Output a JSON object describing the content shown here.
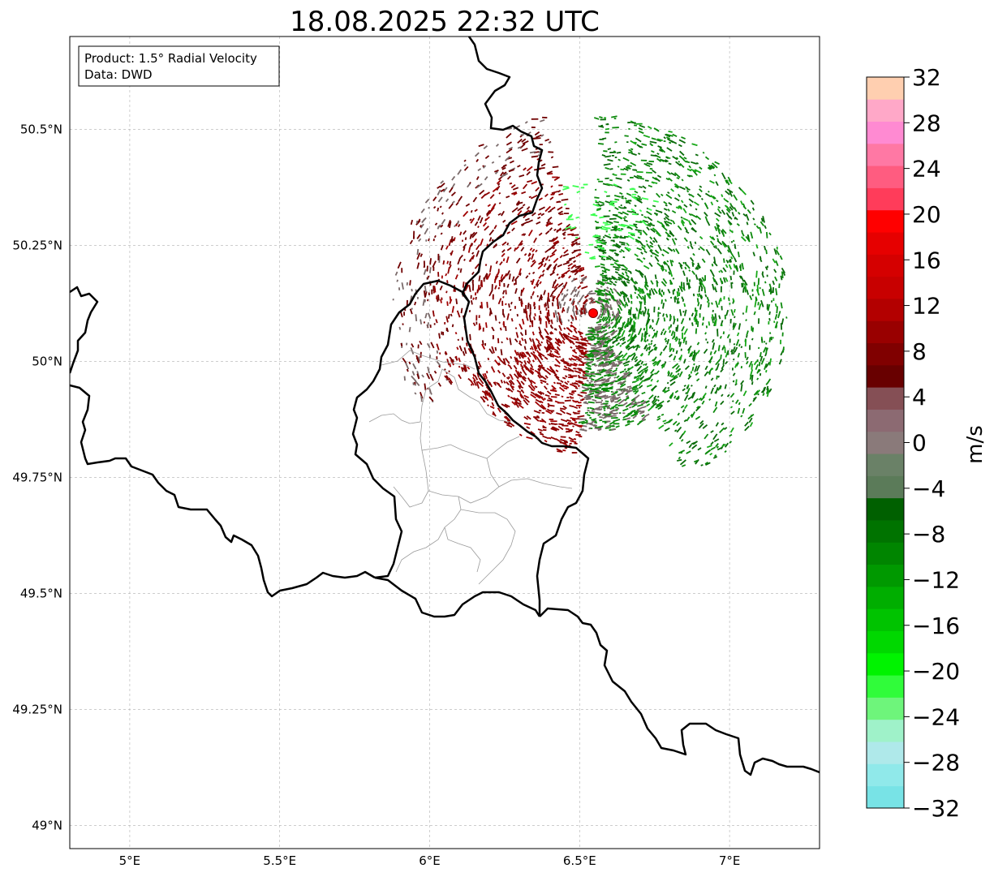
{
  "title": "18.08.2025 22:32 UTC",
  "info_box": {
    "product": "Product: 1.5° Radial Velocity",
    "source": "Data: DWD"
  },
  "map": {
    "lon_range": [
      4.8,
      7.3
    ],
    "lat_range": [
      48.95,
      50.7
    ],
    "lat_ticks": [
      {
        "value": 50.5,
        "label": "50.5°N"
      },
      {
        "value": 50.25,
        "label": "50.25°N"
      },
      {
        "value": 50.0,
        "label": "50°N"
      },
      {
        "value": 49.75,
        "label": "49.75°N"
      },
      {
        "value": 49.5,
        "label": "49.5°N"
      },
      {
        "value": 49.25,
        "label": "49.25°N"
      },
      {
        "value": 49.0,
        "label": "49°N"
      }
    ],
    "lon_ticks": [
      {
        "value": 5.0,
        "label": "5°E"
      },
      {
        "value": 5.5,
        "label": "5.5°E"
      },
      {
        "value": 6.0,
        "label": "6°E"
      },
      {
        "value": 6.5,
        "label": "6.5°E"
      },
      {
        "value": 7.0,
        "label": "7°E"
      }
    ],
    "gridlines": true,
    "radar_site": {
      "lon": 6.548,
      "lat": 50.11,
      "color": "#ff0000"
    }
  },
  "colorbar": {
    "label": "m/s",
    "min": -32,
    "max": 32,
    "step": 2,
    "ticks": [
      "32",
      "28",
      "24",
      "20",
      "16",
      "12",
      "8",
      "4",
      "0",
      "−4",
      "−8",
      "−12",
      "−16",
      "−20",
      "−24",
      "−28",
      "−32"
    ],
    "colors_bottom_to_top": [
      "#78e3e6",
      "#90e9ea",
      "#afe9ea",
      "#9ff2c9",
      "#6ef57b",
      "#30fc3a",
      "#00f300",
      "#00d800",
      "#00c300",
      "#00ae00",
      "#009900",
      "#008500",
      "#007300",
      "#006000",
      "#5b7b59",
      "#6a8167",
      "#8a7a7a",
      "#8c6a72",
      "#854f55",
      "#680000",
      "#800000",
      "#990000",
      "#b30000",
      "#c80000",
      "#d50000",
      "#e60000",
      "#ff0000",
      "#ff3c5a",
      "#ff5c80",
      "#ff78a4",
      "#ff8ad2",
      "#ffa8c8",
      "#ffcfb0"
    ]
  },
  "velocity_palette": {
    "away_dark": "#700000",
    "away_mid": "#8b0000",
    "away_light": "#a00000",
    "neutral": "#7a6a6a",
    "toward_dark": "#0a6b0a",
    "toward_mid": "#0d8a0d",
    "toward_light": "#18a818",
    "toward_bright": "#3cff50"
  }
}
